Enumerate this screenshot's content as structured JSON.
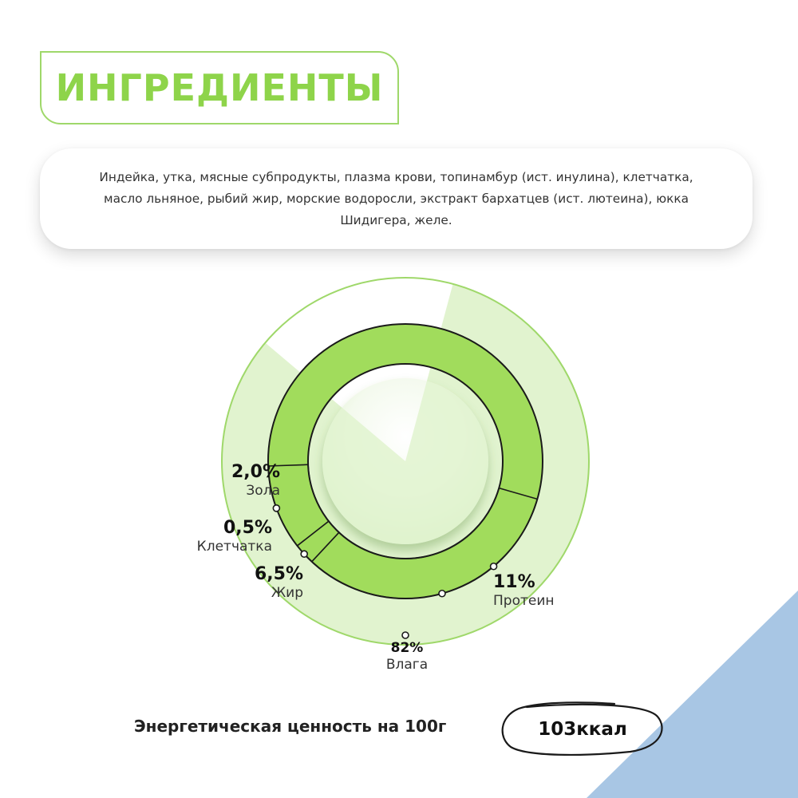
{
  "title": "ИНГРЕДИЕНТЫ",
  "ingredients": {
    "line1": "Индейка, утка, мясные субпродукты, плазма крови, топинамбур (ист. инулина), клетчатка,",
    "line2": "масло льняное, рыбий жир, морские водоросли, экстракт бархатцев (ист. лютеина), юкка",
    "line3": "Шидигера, желе."
  },
  "chart_data": {
    "type": "pie",
    "outer": {
      "slices": [
        {
          "label": "Влага",
          "value": 82,
          "display": "82%"
        }
      ]
    },
    "inner": {
      "slices": [
        {
          "label": "Протеин",
          "value": 11,
          "display": "11%"
        },
        {
          "label": "Жир",
          "value": 6.5,
          "display": "6,5%"
        },
        {
          "label": "Клетчатка",
          "value": 0.5,
          "display": "0,5%"
        },
        {
          "label": "Зола",
          "value": 2.0,
          "display": "2,0%"
        }
      ]
    },
    "colors": {
      "light": "#e1f3cf",
      "medium": "#a1dc5c",
      "line": "#9fd86a",
      "dark": "#1a1a1a"
    }
  },
  "energy": {
    "label": "Энергетическая ценность на 100г",
    "value": "103ккал"
  },
  "decor": {
    "corner_color": "#a8c6e4"
  }
}
